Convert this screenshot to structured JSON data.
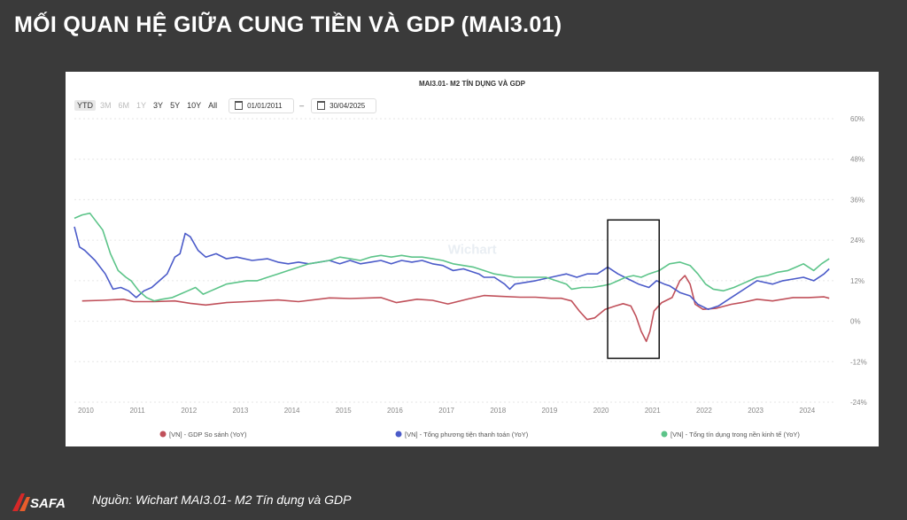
{
  "slide": {
    "title": "MỐI QUAN HỆ GIỮA CUNG TIỀN VÀ GDP (MAI3.01)",
    "source": "Nguồn: Wichart MAI3.01- M2 Tín dụng và GDP",
    "logo_text": "SAFA"
  },
  "toolbar": {
    "ranges": [
      {
        "label": "YTD",
        "state": "normal"
      },
      {
        "label": "3M",
        "state": "disabled"
      },
      {
        "label": "6M",
        "state": "disabled"
      },
      {
        "label": "1Y",
        "state": "disabled"
      },
      {
        "label": "3Y",
        "state": "normal"
      },
      {
        "label": "5Y",
        "state": "normal"
      },
      {
        "label": "10Y",
        "state": "normal"
      },
      {
        "label": "All",
        "state": "normal"
      }
    ],
    "from_date": "01/01/2011",
    "to_date": "30/04/2025",
    "separator": "–"
  },
  "watermark": "Wichart",
  "colors": {
    "gdp": "#c0505a",
    "m2": "#4b5bc9",
    "credit": "#5cc489",
    "grid": "#e6e6e6",
    "axis_text": "#888888"
  },
  "chart_data": {
    "type": "line",
    "title": "MAI3.01- M2 TÍN DỤNG VÀ GDP",
    "x_ticks": [
      "2010",
      "2011",
      "2012",
      "2013",
      "2014",
      "2015",
      "2016",
      "2017",
      "2018",
      "2019",
      "2020",
      "2021",
      "2022",
      "2023",
      "2024"
    ],
    "y_ticks": [
      "60%",
      "48%",
      "36%",
      "24%",
      "12%",
      "0%",
      "-12%",
      "-24%"
    ],
    "ylim": [
      -24,
      60
    ],
    "xlim": [
      2009.95,
      2024.7
    ],
    "legend_position": "bottom",
    "annotation": {
      "type": "rectangle",
      "x_range": [
        2020.3,
        2021.3
      ],
      "y_range": [
        -11,
        30
      ]
    },
    "series": [
      {
        "name": "[VN] - GDP So sánh (YoY)",
        "color_key": "gdp",
        "points": [
          [
            2010.1,
            6
          ],
          [
            2010.5,
            6.2
          ],
          [
            2010.9,
            6.5
          ],
          [
            2011.1,
            5.8
          ],
          [
            2011.5,
            5.8
          ],
          [
            2011.9,
            6
          ],
          [
            2012.2,
            5.3
          ],
          [
            2012.5,
            4.8
          ],
          [
            2012.9,
            5.5
          ],
          [
            2013.3,
            5.8
          ],
          [
            2013.9,
            6.3
          ],
          [
            2014.3,
            5.8
          ],
          [
            2014.9,
            6.9
          ],
          [
            2015.3,
            6.7
          ],
          [
            2015.9,
            7
          ],
          [
            2016.2,
            5.5
          ],
          [
            2016.6,
            6.5
          ],
          [
            2016.9,
            6.2
          ],
          [
            2017.2,
            5.1
          ],
          [
            2017.6,
            6.6
          ],
          [
            2017.9,
            7.6
          ],
          [
            2018.2,
            7.4
          ],
          [
            2018.6,
            7.1
          ],
          [
            2018.9,
            7.1
          ],
          [
            2019.2,
            6.8
          ],
          [
            2019.4,
            6.8
          ],
          [
            2019.6,
            6
          ],
          [
            2019.75,
            3
          ],
          [
            2019.9,
            0.5
          ],
          [
            2020.05,
            1
          ],
          [
            2020.25,
            3.5
          ],
          [
            2020.45,
            4.5
          ],
          [
            2020.6,
            5.2
          ],
          [
            2020.75,
            4.5
          ],
          [
            2020.85,
            1.5
          ],
          [
            2020.95,
            -3
          ],
          [
            2021.05,
            -6
          ],
          [
            2021.12,
            -3
          ],
          [
            2021.2,
            3
          ],
          [
            2021.35,
            5.5
          ],
          [
            2021.55,
            7
          ],
          [
            2021.7,
            12
          ],
          [
            2021.8,
            13.5
          ],
          [
            2021.9,
            11
          ],
          [
            2022.0,
            5
          ],
          [
            2022.15,
            3.5
          ],
          [
            2022.4,
            3.8
          ],
          [
            2022.7,
            5
          ],
          [
            2022.9,
            5.5
          ],
          [
            2023.2,
            6.5
          ],
          [
            2023.5,
            6
          ],
          [
            2023.9,
            7
          ],
          [
            2024.2,
            7
          ],
          [
            2024.5,
            7.2
          ],
          [
            2024.6,
            6.8
          ]
        ]
      },
      {
        "name": "[VN] - Tổng phương tiện thanh toán (YoY)",
        "color_key": "m2",
        "points": [
          [
            2009.95,
            28
          ],
          [
            2010.05,
            22
          ],
          [
            2010.15,
            21
          ],
          [
            2010.35,
            18
          ],
          [
            2010.55,
            14
          ],
          [
            2010.7,
            9.5
          ],
          [
            2010.85,
            10
          ],
          [
            2011.0,
            9
          ],
          [
            2011.15,
            7
          ],
          [
            2011.3,
            9
          ],
          [
            2011.45,
            10
          ],
          [
            2011.6,
            12
          ],
          [
            2011.75,
            14
          ],
          [
            2011.9,
            19
          ],
          [
            2012.0,
            20
          ],
          [
            2012.1,
            26
          ],
          [
            2012.2,
            25
          ],
          [
            2012.35,
            21
          ],
          [
            2012.5,
            19
          ],
          [
            2012.7,
            20
          ],
          [
            2012.9,
            18.5
          ],
          [
            2013.1,
            19
          ],
          [
            2013.4,
            18
          ],
          [
            2013.7,
            18.5
          ],
          [
            2013.9,
            17.5
          ],
          [
            2014.1,
            17
          ],
          [
            2014.3,
            17.5
          ],
          [
            2014.5,
            17
          ],
          [
            2014.7,
            17.5
          ],
          [
            2014.9,
            18
          ],
          [
            2015.1,
            17
          ],
          [
            2015.3,
            18
          ],
          [
            2015.5,
            17
          ],
          [
            2015.7,
            17.5
          ],
          [
            2015.9,
            18
          ],
          [
            2016.1,
            17
          ],
          [
            2016.3,
            18
          ],
          [
            2016.5,
            17.5
          ],
          [
            2016.7,
            18
          ],
          [
            2016.9,
            17
          ],
          [
            2017.1,
            16.5
          ],
          [
            2017.3,
            15
          ],
          [
            2017.5,
            15.5
          ],
          [
            2017.8,
            14
          ],
          [
            2017.9,
            13
          ],
          [
            2018.1,
            13
          ],
          [
            2018.3,
            11
          ],
          [
            2018.4,
            9.5
          ],
          [
            2018.5,
            11
          ],
          [
            2018.7,
            11.5
          ],
          [
            2018.9,
            12
          ],
          [
            2019.2,
            13
          ],
          [
            2019.5,
            14
          ],
          [
            2019.7,
            13
          ],
          [
            2019.9,
            14
          ],
          [
            2020.1,
            14
          ],
          [
            2020.3,
            16
          ],
          [
            2020.5,
            14
          ],
          [
            2020.7,
            12.5
          ],
          [
            2020.9,
            11
          ],
          [
            2021.1,
            10
          ],
          [
            2021.25,
            12
          ],
          [
            2021.4,
            11
          ],
          [
            2021.5,
            10.5
          ],
          [
            2021.7,
            8.5
          ],
          [
            2021.9,
            7.5
          ],
          [
            2022.05,
            5
          ],
          [
            2022.25,
            3.5
          ],
          [
            2022.45,
            4.5
          ],
          [
            2022.6,
            6
          ],
          [
            2022.8,
            8
          ],
          [
            2023.0,
            10
          ],
          [
            2023.2,
            12
          ],
          [
            2023.5,
            11
          ],
          [
            2023.7,
            12
          ],
          [
            2023.9,
            12.5
          ],
          [
            2024.1,
            13
          ],
          [
            2024.3,
            12
          ],
          [
            2024.5,
            14
          ],
          [
            2024.6,
            15.5
          ]
        ]
      },
      {
        "name": "[VN] - Tổng tín dụng trong nền kinh tế (YoY)",
        "color_key": "credit",
        "points": [
          [
            2009.95,
            30.5
          ],
          [
            2010.1,
            31.5
          ],
          [
            2010.25,
            32
          ],
          [
            2010.35,
            30
          ],
          [
            2010.5,
            27
          ],
          [
            2010.65,
            20
          ],
          [
            2010.8,
            15
          ],
          [
            2010.95,
            13
          ],
          [
            2011.05,
            12
          ],
          [
            2011.2,
            9
          ],
          [
            2011.35,
            7
          ],
          [
            2011.5,
            6
          ],
          [
            2011.65,
            6.5
          ],
          [
            2011.85,
            7
          ],
          [
            2012.0,
            8
          ],
          [
            2012.15,
            9
          ],
          [
            2012.3,
            10
          ],
          [
            2012.45,
            8
          ],
          [
            2012.6,
            9
          ],
          [
            2012.75,
            10
          ],
          [
            2012.9,
            11
          ],
          [
            2013.1,
            11.5
          ],
          [
            2013.3,
            12
          ],
          [
            2013.5,
            12
          ],
          [
            2013.7,
            13
          ],
          [
            2013.9,
            14
          ],
          [
            2014.1,
            15
          ],
          [
            2014.3,
            16
          ],
          [
            2014.5,
            17
          ],
          [
            2014.7,
            17.5
          ],
          [
            2014.9,
            18
          ],
          [
            2015.1,
            19
          ],
          [
            2015.3,
            18.5
          ],
          [
            2015.5,
            18
          ],
          [
            2015.7,
            19
          ],
          [
            2015.9,
            19.5
          ],
          [
            2016.1,
            19
          ],
          [
            2016.3,
            19.5
          ],
          [
            2016.5,
            19
          ],
          [
            2016.7,
            19
          ],
          [
            2016.9,
            18.5
          ],
          [
            2017.1,
            18
          ],
          [
            2017.3,
            17
          ],
          [
            2017.5,
            16.5
          ],
          [
            2017.7,
            16
          ],
          [
            2017.9,
            15
          ],
          [
            2018.1,
            14
          ],
          [
            2018.3,
            13.5
          ],
          [
            2018.5,
            13
          ],
          [
            2018.7,
            13
          ],
          [
            2018.9,
            13
          ],
          [
            2019.1,
            13
          ],
          [
            2019.3,
            12
          ],
          [
            2019.5,
            11
          ],
          [
            2019.6,
            9.5
          ],
          [
            2019.8,
            10
          ],
          [
            2020.0,
            10
          ],
          [
            2020.2,
            10.5
          ],
          [
            2020.35,
            11
          ],
          [
            2020.5,
            12
          ],
          [
            2020.65,
            13
          ],
          [
            2020.8,
            13.5
          ],
          [
            2020.95,
            13
          ],
          [
            2021.1,
            14
          ],
          [
            2021.3,
            15
          ],
          [
            2021.5,
            17
          ],
          [
            2021.7,
            17.5
          ],
          [
            2021.9,
            16.5
          ],
          [
            2022.05,
            14
          ],
          [
            2022.2,
            11
          ],
          [
            2022.35,
            9.5
          ],
          [
            2022.55,
            9
          ],
          [
            2022.75,
            10
          ],
          [
            2022.9,
            11
          ],
          [
            2023.05,
            12
          ],
          [
            2023.2,
            13
          ],
          [
            2023.4,
            13.5
          ],
          [
            2023.6,
            14.5
          ],
          [
            2023.8,
            15
          ],
          [
            2023.95,
            16
          ],
          [
            2024.1,
            17
          ],
          [
            2024.3,
            15
          ],
          [
            2024.45,
            17
          ],
          [
            2024.6,
            18.5
          ]
        ]
      }
    ]
  }
}
